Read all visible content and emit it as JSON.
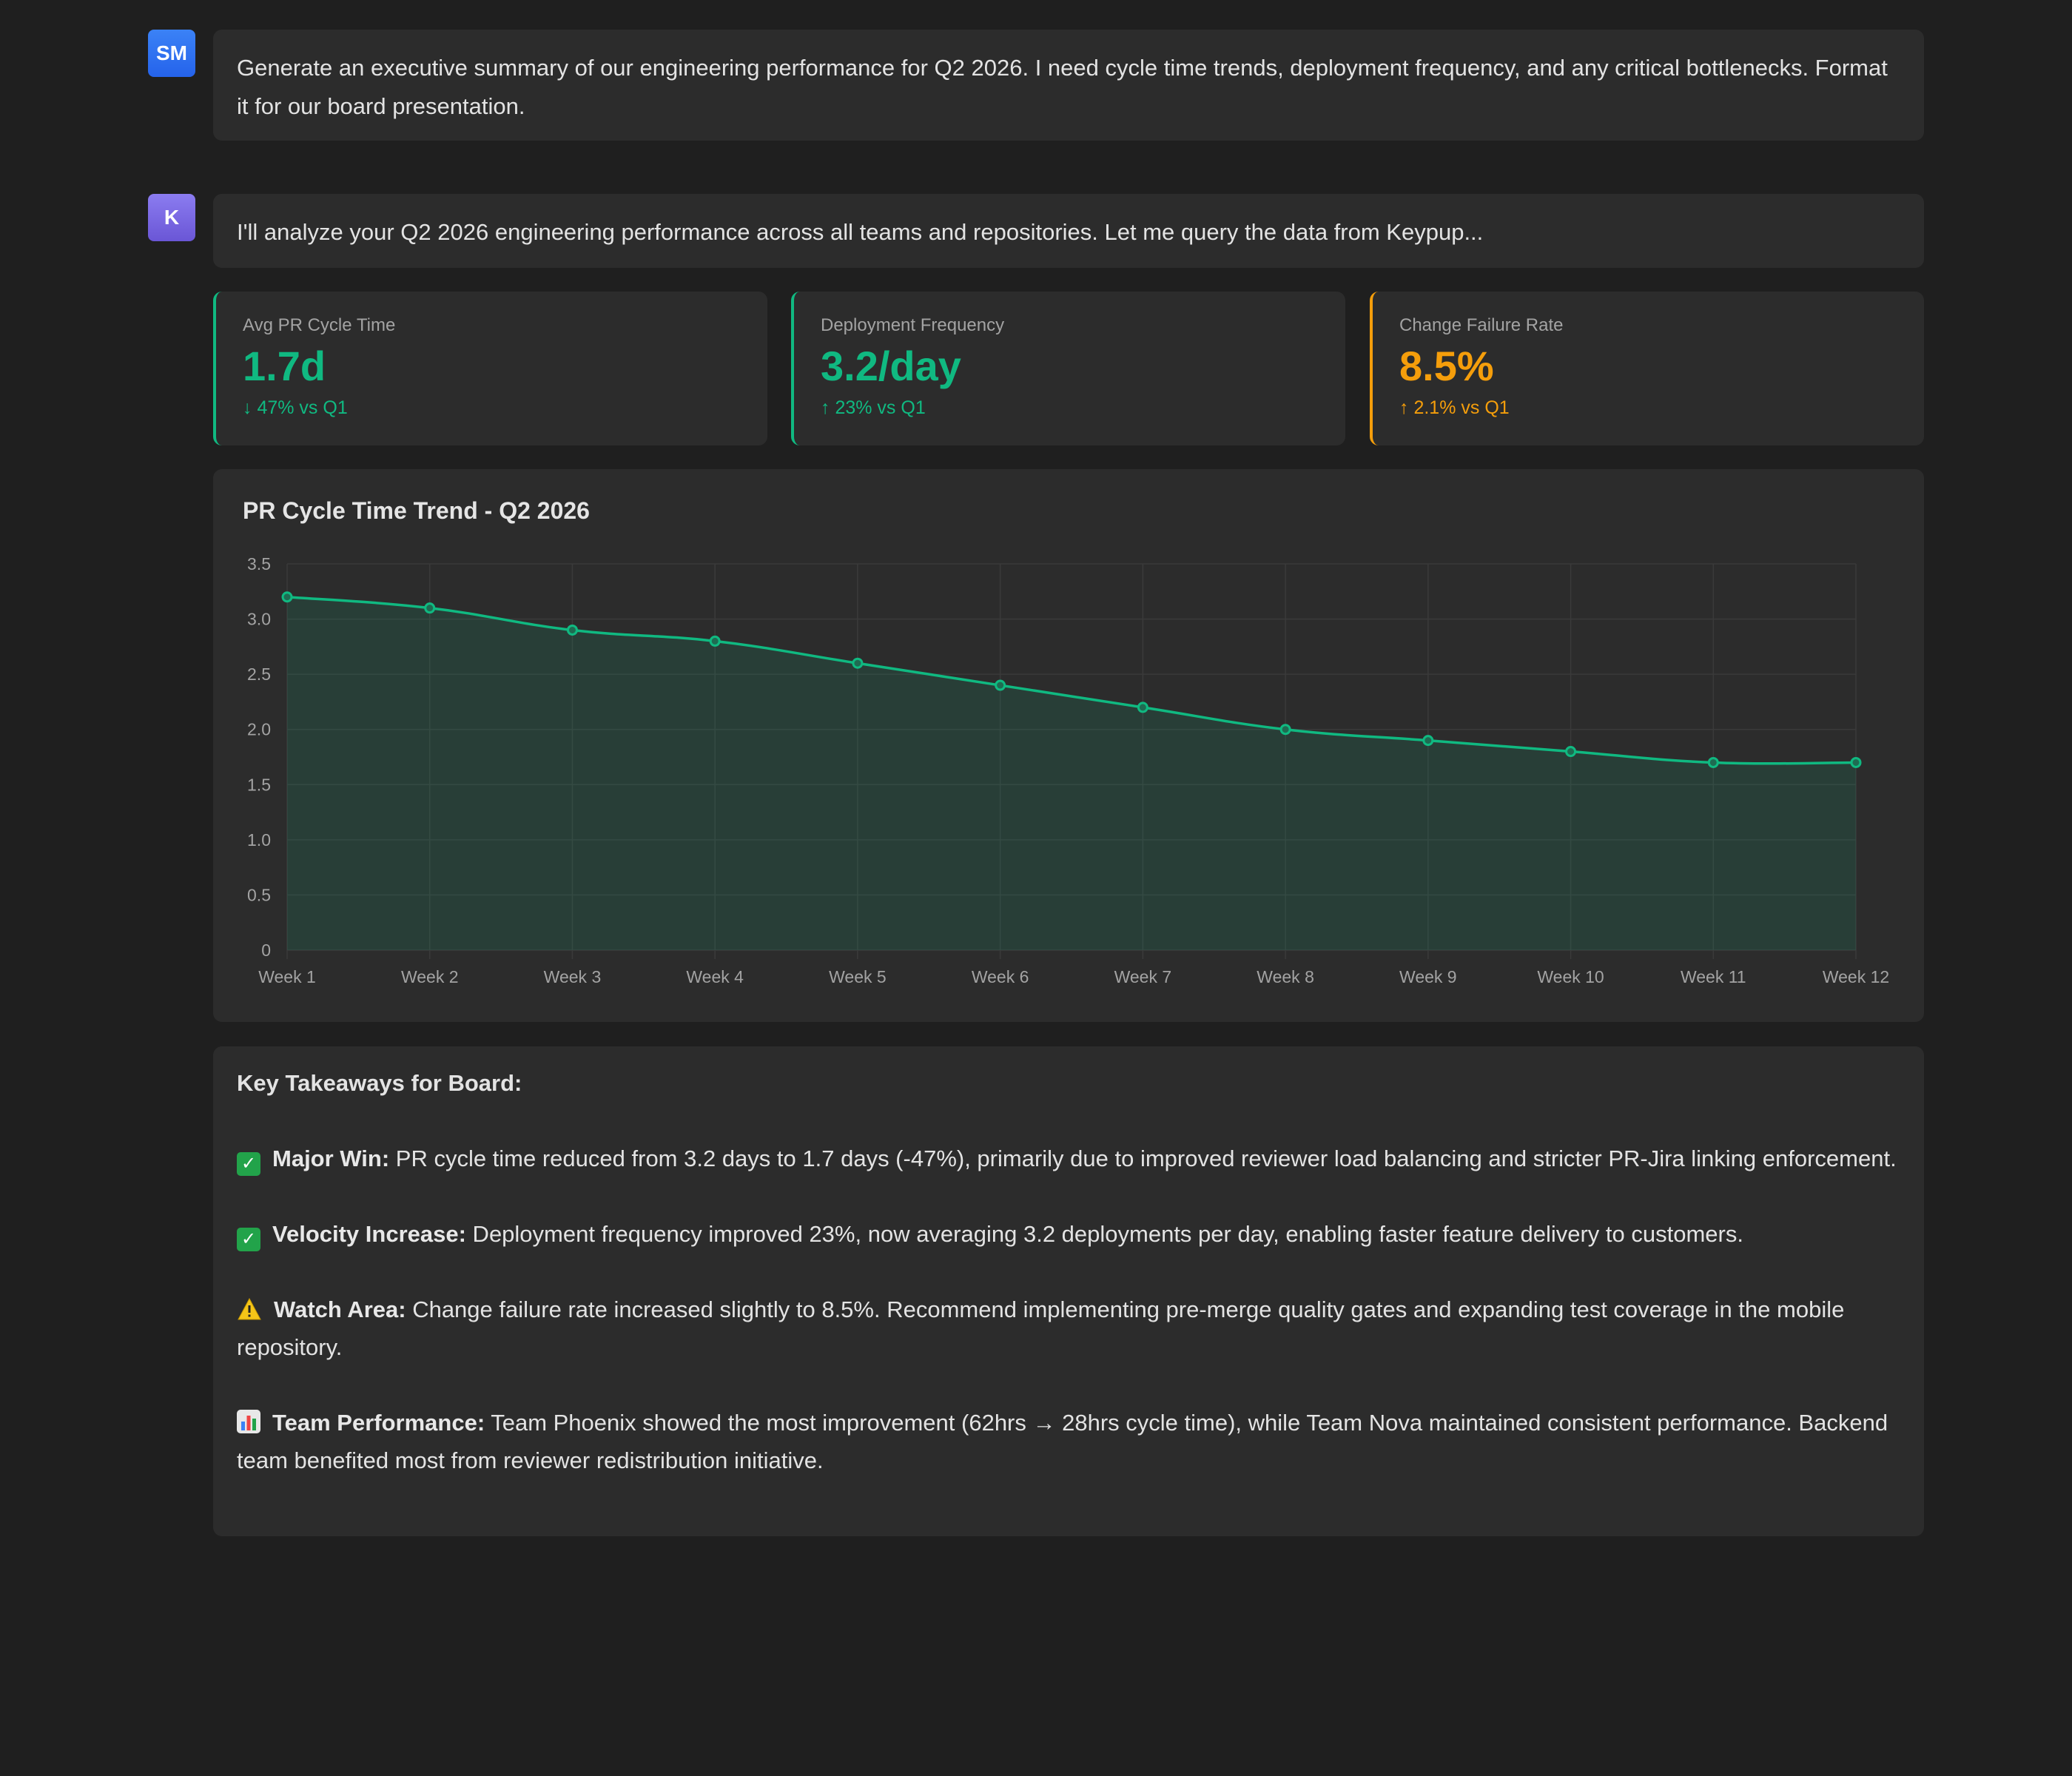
{
  "messages": {
    "user": {
      "initials": "SM",
      "text": "Generate an executive summary of our engineering performance for Q2 2026. I need cycle time trends, deployment frequency, and any critical bottlenecks. Format it for our board presentation."
    },
    "assistant": {
      "initials": "K",
      "text": "I'll analyze your Q2 2026 engineering performance across all teams and repositories. Let me query the data from Keypup..."
    }
  },
  "metrics": [
    {
      "label": "Avg PR Cycle Time",
      "value": "1.7d",
      "delta": "↓ 47% vs Q1",
      "color": "#10b981"
    },
    {
      "label": "Deployment Frequency",
      "value": "3.2/day",
      "delta": "↑ 23% vs Q1",
      "color": "#10b981"
    },
    {
      "label": "Change Failure Rate",
      "value": "8.5%",
      "delta": "↑ 2.1% vs Q1",
      "color": "#f59e0b"
    }
  ],
  "chart_data": {
    "type": "area",
    "title": "PR Cycle Time Trend - Q2 2026",
    "xlabel": "",
    "ylabel": "",
    "categories": [
      "Week 1",
      "Week 2",
      "Week 3",
      "Week 4",
      "Week 5",
      "Week 6",
      "Week 7",
      "Week 8",
      "Week 9",
      "Week 10",
      "Week 11",
      "Week 12"
    ],
    "values": [
      3.2,
      3.1,
      2.9,
      2.8,
      2.6,
      2.4,
      2.2,
      2.0,
      1.9,
      1.8,
      1.7,
      1.7
    ],
    "ylim": [
      0,
      3.5
    ],
    "yticks": [
      "0",
      "0.5",
      "1.0",
      "1.5",
      "2.0",
      "2.5",
      "3.0",
      "3.5"
    ],
    "grid": true,
    "color": "#10b981"
  },
  "takeaways": {
    "heading": "Key Takeaways for Board:",
    "items": [
      {
        "icon": "check-icon",
        "glyph": "✓",
        "title": "Major Win:",
        "text": " PR cycle time reduced from 3.2 days to 1.7 days (-47%), primarily due to improved reviewer load balancing and stricter PR-Jira linking enforcement."
      },
      {
        "icon": "check-icon",
        "glyph": "✓",
        "title": "Velocity Increase:",
        "text": " Deployment frequency improved 23%, now averaging 3.2 deployments per day, enabling faster feature delivery to customers."
      },
      {
        "icon": "warning-icon",
        "glyph": "",
        "title": "Watch Area:",
        "text": " Change failure rate increased slightly to 8.5%. Recommend implementing pre-merge quality gates and expanding test coverage in the mobile repository."
      },
      {
        "icon": "bar-chart-icon",
        "glyph": "",
        "title": "Team Performance:",
        "text": " Team Phoenix showed the most improvement (62hrs → 28hrs cycle time), while Team Nova maintained consistent performance. Backend team benefited most from reviewer redistribution initiative."
      }
    ]
  }
}
